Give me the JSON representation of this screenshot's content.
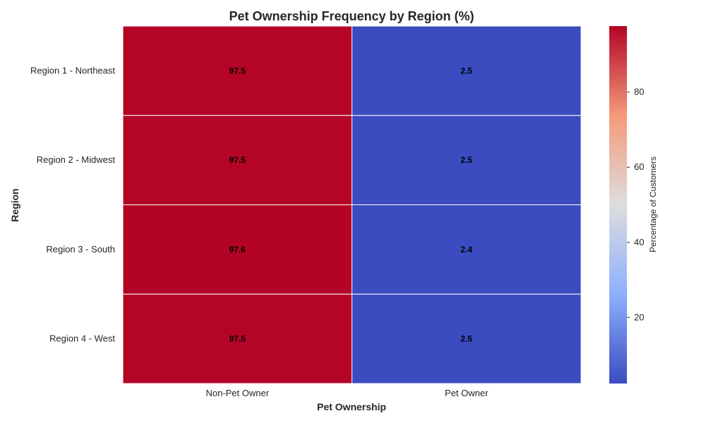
{
  "chart_data": {
    "type": "heatmap",
    "title": "Pet Ownership Frequency by Region (%)",
    "xlabel": "Pet Ownership",
    "ylabel": "Region",
    "x_categories": [
      "Non-Pet Owner",
      "Pet Owner"
    ],
    "y_categories": [
      "Region 1 - Northeast",
      "Region 2 - Midwest",
      "Region 3 - South",
      "Region 4 - West"
    ],
    "values": [
      [
        97.5,
        2.5
      ],
      [
        97.5,
        2.5
      ],
      [
        97.6,
        2.4
      ],
      [
        97.5,
        2.5
      ]
    ],
    "cell_labels": [
      [
        "97.5",
        "2.5"
      ],
      [
        "97.5",
        "2.5"
      ],
      [
        "97.6",
        "2.4"
      ],
      [
        "97.5",
        "2.5"
      ]
    ],
    "colormap": "coolwarm",
    "color_range": [
      2.4,
      97.6
    ],
    "colorbar": {
      "label": "Percentage of Customers",
      "ticks": [
        20,
        40,
        60,
        80
      ]
    }
  }
}
